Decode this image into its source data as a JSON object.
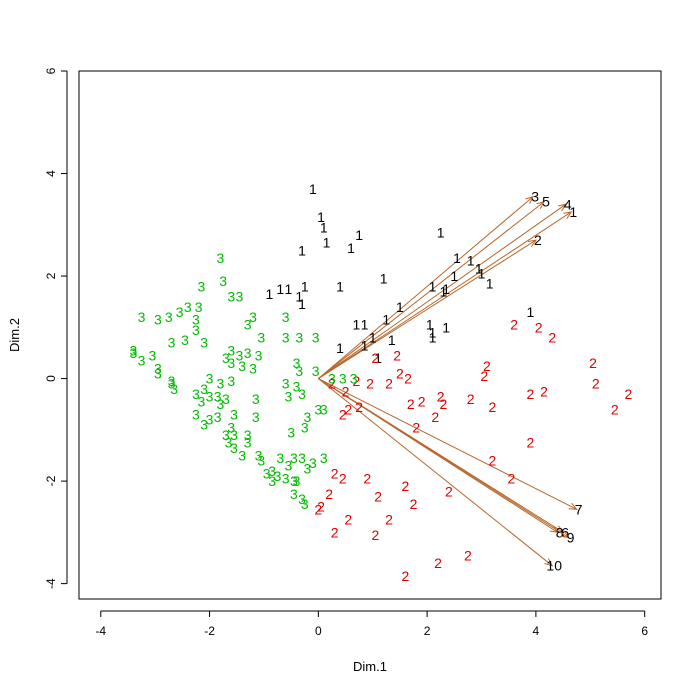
{
  "chart_data": {
    "type": "scatter",
    "subtype": "biplot",
    "title": "",
    "xlabel": "Dim.1",
    "ylabel": "Dim.2",
    "xlim": [
      -4.4,
      6.3
    ],
    "ylim": [
      -4.3,
      6.0
    ],
    "x_ticks": [
      -4,
      -2,
      0,
      2,
      4,
      6
    ],
    "y_ticks": [
      -4,
      -2,
      0,
      2,
      4,
      6
    ],
    "grid": false,
    "legend": "none",
    "colors": {
      "group1": "#000000",
      "group2": "#dd0000",
      "group3": "#00bb00",
      "arrow": "#b8662c"
    },
    "series": [
      {
        "label": "1",
        "color": "#000000",
        "points": [
          [
            -0.1,
            3.7
          ],
          [
            0.05,
            3.15
          ],
          [
            0.1,
            2.95
          ],
          [
            0.15,
            2.65
          ],
          [
            -0.3,
            2.5
          ],
          [
            0.6,
            2.55
          ],
          [
            0.75,
            2.8
          ],
          [
            2.25,
            2.85
          ],
          [
            -0.9,
            1.65
          ],
          [
            -0.7,
            1.75
          ],
          [
            -0.55,
            1.75
          ],
          [
            -0.35,
            1.6
          ],
          [
            -0.25,
            1.8
          ],
          [
            -0.3,
            1.45
          ],
          [
            0.4,
            1.8
          ],
          [
            1.2,
            1.95
          ],
          [
            2.55,
            2.35
          ],
          [
            2.8,
            2.3
          ],
          [
            2.95,
            2.15
          ],
          [
            2.5,
            2.0
          ],
          [
            3.0,
            2.05
          ],
          [
            3.15,
            1.85
          ],
          [
            2.3,
            1.7
          ],
          [
            2.1,
            1.8
          ],
          [
            2.35,
            1.75
          ],
          [
            1.5,
            1.4
          ],
          [
            1.25,
            1.15
          ],
          [
            0.7,
            1.05
          ],
          [
            0.85,
            1.05
          ],
          [
            2.05,
            1.05
          ],
          [
            2.1,
            0.9
          ],
          [
            2.1,
            0.8
          ],
          [
            2.35,
            1.0
          ],
          [
            1.0,
            0.8
          ],
          [
            1.35,
            0.75
          ],
          [
            0.85,
            0.65
          ],
          [
            0.4,
            0.6
          ],
          [
            1.1,
            0.4
          ],
          [
            3.9,
            1.3
          ]
        ]
      },
      {
        "label": "2",
        "color": "#dd0000",
        "points": [
          [
            3.6,
            1.05
          ],
          [
            4.05,
            1.0
          ],
          [
            4.3,
            0.8
          ],
          [
            1.45,
            0.45
          ],
          [
            1.05,
            0.4
          ],
          [
            3.1,
            0.25
          ],
          [
            3.05,
            0.05
          ],
          [
            5.05,
            0.3
          ],
          [
            1.5,
            0.1
          ],
          [
            1.65,
            0.0
          ],
          [
            0.7,
            -0.05
          ],
          [
            0.95,
            -0.1
          ],
          [
            1.3,
            -0.1
          ],
          [
            5.1,
            -0.1
          ],
          [
            0.25,
            -0.1
          ],
          [
            0.5,
            -0.25
          ],
          [
            2.25,
            -0.35
          ],
          [
            2.8,
            -0.4
          ],
          [
            3.9,
            -0.3
          ],
          [
            4.15,
            -0.25
          ],
          [
            5.7,
            -0.3
          ],
          [
            1.7,
            -0.5
          ],
          [
            1.9,
            -0.45
          ],
          [
            2.3,
            -0.5
          ],
          [
            3.2,
            -0.55
          ],
          [
            5.45,
            -0.6
          ],
          [
            0.75,
            -0.55
          ],
          [
            0.55,
            -0.6
          ],
          [
            0.45,
            -0.7
          ],
          [
            2.15,
            -0.75
          ],
          [
            1.8,
            -0.95
          ],
          [
            3.9,
            -1.25
          ],
          [
            3.2,
            -1.6
          ],
          [
            3.55,
            -1.95
          ],
          [
            0.3,
            -1.85
          ],
          [
            0.45,
            -1.95
          ],
          [
            0.9,
            -1.95
          ],
          [
            1.6,
            -2.1
          ],
          [
            2.4,
            -2.2
          ],
          [
            0.2,
            -2.25
          ],
          [
            1.1,
            -2.3
          ],
          [
            0.05,
            -2.5
          ],
          [
            1.75,
            -2.45
          ],
          [
            0.0,
            -2.55
          ],
          [
            0.55,
            -2.75
          ],
          [
            1.3,
            -2.75
          ],
          [
            0.3,
            -3.0
          ],
          [
            1.05,
            -3.05
          ],
          [
            2.2,
            -3.6
          ],
          [
            2.75,
            -3.45
          ],
          [
            1.6,
            -3.85
          ]
        ]
      },
      {
        "label": "3",
        "color": "#00bb00",
        "points": [
          [
            -1.8,
            2.35
          ],
          [
            -1.75,
            1.9
          ],
          [
            -2.15,
            1.8
          ],
          [
            -1.6,
            1.6
          ],
          [
            -1.45,
            1.6
          ],
          [
            -2.2,
            1.4
          ],
          [
            -2.4,
            1.4
          ],
          [
            -2.55,
            1.3
          ],
          [
            -2.75,
            1.2
          ],
          [
            -2.95,
            1.15
          ],
          [
            -3.25,
            1.2
          ],
          [
            -2.25,
            1.15
          ],
          [
            -1.2,
            1.2
          ],
          [
            -0.6,
            1.2
          ],
          [
            -1.3,
            1.05
          ],
          [
            -2.25,
            0.95
          ],
          [
            -2.45,
            0.75
          ],
          [
            -2.1,
            0.7
          ],
          [
            -2.7,
            0.7
          ],
          [
            -1.05,
            0.8
          ],
          [
            -0.6,
            0.8
          ],
          [
            -0.35,
            0.8
          ],
          [
            -0.05,
            0.8
          ],
          [
            -3.4,
            0.55
          ],
          [
            -3.4,
            0.5
          ],
          [
            -3.05,
            0.45
          ],
          [
            -3.25,
            0.35
          ],
          [
            -1.6,
            0.55
          ],
          [
            -1.45,
            0.45
          ],
          [
            -1.3,
            0.5
          ],
          [
            -1.1,
            0.45
          ],
          [
            -1.7,
            0.4
          ],
          [
            -1.4,
            0.25
          ],
          [
            -1.6,
            0.3
          ],
          [
            -1.2,
            0.2
          ],
          [
            -2.95,
            0.2
          ],
          [
            -2.95,
            0.1
          ],
          [
            -2.7,
            -0.05
          ],
          [
            -2.7,
            -0.1
          ],
          [
            -2.65,
            -0.2
          ],
          [
            -2.0,
            0.0
          ],
          [
            -1.8,
            -0.1
          ],
          [
            -1.6,
            -0.05
          ],
          [
            -2.1,
            -0.2
          ],
          [
            -2.25,
            -0.3
          ],
          [
            -2.0,
            -0.35
          ],
          [
            -1.85,
            -0.35
          ],
          [
            -2.15,
            -0.45
          ],
          [
            -1.7,
            -0.4
          ],
          [
            -1.8,
            -0.5
          ],
          [
            -1.15,
            -0.4
          ],
          [
            -0.55,
            -0.35
          ],
          [
            -0.6,
            -0.1
          ],
          [
            -0.4,
            -0.15
          ],
          [
            -0.3,
            -0.3
          ],
          [
            -0.35,
            0.15
          ],
          [
            -0.4,
            0.3
          ],
          [
            -0.05,
            0.15
          ],
          [
            0.25,
            0.0
          ],
          [
            0.45,
            0.0
          ],
          [
            0.65,
            0.0
          ],
          [
            0.0,
            -0.6
          ],
          [
            0.1,
            -0.6
          ],
          [
            -2.25,
            -0.7
          ],
          [
            -2.0,
            -0.8
          ],
          [
            -1.85,
            -0.75
          ],
          [
            -1.55,
            -0.7
          ],
          [
            -1.15,
            -0.75
          ],
          [
            -0.2,
            -0.75
          ],
          [
            -2.1,
            -0.9
          ],
          [
            -1.6,
            -0.95
          ],
          [
            -0.5,
            -1.05
          ],
          [
            -0.25,
            -0.95
          ],
          [
            -1.7,
            -1.1
          ],
          [
            -1.55,
            -1.1
          ],
          [
            -1.3,
            -1.1
          ],
          [
            -1.65,
            -1.25
          ],
          [
            -1.55,
            -1.35
          ],
          [
            -1.3,
            -1.25
          ],
          [
            -1.4,
            -1.5
          ],
          [
            -1.1,
            -1.5
          ],
          [
            -1.05,
            -1.6
          ],
          [
            -0.7,
            -1.55
          ],
          [
            -0.45,
            -1.55
          ],
          [
            -0.3,
            -1.55
          ],
          [
            -0.1,
            -1.65
          ],
          [
            -0.55,
            -1.7
          ],
          [
            -0.2,
            -1.75
          ],
          [
            -0.85,
            -1.8
          ],
          [
            -0.95,
            -1.85
          ],
          [
            -0.75,
            -1.9
          ],
          [
            -0.6,
            -1.95
          ],
          [
            -0.85,
            -2.0
          ],
          [
            -0.45,
            -2.0
          ],
          [
            0.1,
            -1.55
          ],
          [
            -0.4,
            -2.0
          ],
          [
            -0.45,
            -2.25
          ],
          [
            -0.3,
            -2.35
          ],
          [
            -0.25,
            -2.45
          ]
        ]
      }
    ],
    "arrows": [
      {
        "label": "1",
        "x": 4.65,
        "y": 3.25
      },
      {
        "label": "2",
        "x": 4.0,
        "y": 2.7
      },
      {
        "label": "3",
        "x": 3.95,
        "y": 3.55
      },
      {
        "label": "4",
        "x": 4.55,
        "y": 3.4
      },
      {
        "label": "5",
        "x": 4.15,
        "y": 3.45
      },
      {
        "label": "6",
        "x": 4.5,
        "y": -3.0
      },
      {
        "label": "7",
        "x": 4.75,
        "y": -2.55
      },
      {
        "label": "8",
        "x": 4.4,
        "y": -3.0
      },
      {
        "label": "9",
        "x": 4.6,
        "y": -3.1
      },
      {
        "label": "10",
        "x": 4.3,
        "y": -3.65
      }
    ]
  }
}
